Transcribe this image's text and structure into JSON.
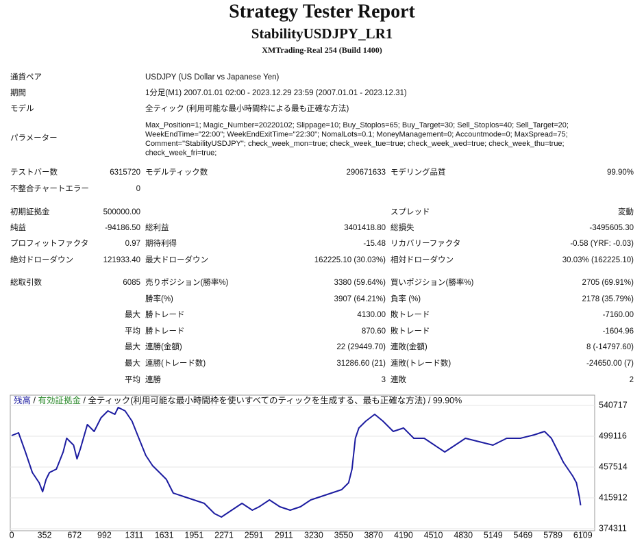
{
  "header": {
    "title": "Strategy Tester Report",
    "subtitle": "StabilityUSDJPY_LR1",
    "build": "XMTrading-Real 254 (Build 1400)"
  },
  "table": {
    "rows": [
      [
        "通貨ペア",
        "USDJPY (US Dollar vs Japanese Yen)"
      ],
      [
        "期間",
        "1分足(M1) 2007.01.01 02:00 - 2023.12.29 23:59 (2007.01.01 - 2023.12.31)"
      ],
      [
        "モデル",
        "全ティック (利用可能な最小時間枠による最も正確な方法)"
      ],
      [
        "パラメーター",
        [
          "Max_Position=1; Magic_Number=20220102; Slippage=10; Buy_Stoplos=65; Buy_Target=30; Sell_Stoplos=40; Sell_Target=20;",
          "WeekEndTime=\"22:00\"; WeekEndExitTime=\"22:30\"; NomalLots=0.1; MoneyManagement=0; Accountmode=0; MaxSpread=75;",
          "Comment=\"StabilityUSDJPY\"; check_week_mon=true; check_week_tue=true; check_week_wed=true; check_week_thu=true;",
          "check_week_fri=true;"
        ]
      ],
      [
        "テストバー数",
        "6315720",
        "モデルティック数",
        "290671633",
        "モデリング品質",
        "99.90%"
      ],
      [
        "不整合チャートエラー",
        "0"
      ],
      [
        "初期証拠金",
        "500000.00",
        null,
        null,
        "スプレッド",
        "変動"
      ],
      [
        "純益",
        "-94186.50",
        "総利益",
        "3401418.80",
        "総損失",
        "-3495605.30"
      ],
      [
        "プロフィットファクタ",
        "0.97",
        "期待利得",
        "-15.48",
        "リカバリーファクタ",
        "-0.58 (YRF: -0.03)"
      ],
      [
        "絶対ドローダウン",
        "121933.40",
        "最大ドローダウン",
        "162225.10 (30.03%)",
        "相対ドローダウン",
        "30.03% (162225.10)"
      ],
      [
        "総取引数",
        "6085",
        "売りポジション(勝率%)",
        "3380 (59.64%)",
        "買いポジション(勝率%)",
        "2705 (69.91%)"
      ],
      [
        null,
        null,
        "勝率(%)",
        "3907 (64.21%)",
        "負率 (%)",
        "2178 (35.79%)"
      ],
      [
        null,
        "最大",
        "勝トレード",
        "4130.00",
        "敗トレード",
        "-7160.00"
      ],
      [
        null,
        "平均",
        "勝トレード",
        "870.60",
        "敗トレード",
        "-1604.96"
      ],
      [
        null,
        "最大",
        "連勝(金額)",
        "22 (29449.70)",
        "連敗(金額)",
        "8 (-14797.60)"
      ],
      [
        null,
        "最大",
        "連勝(トレード数)",
        "31286.60 (21)",
        "連敗(トレード数)",
        "-24650.00 (7)"
      ],
      [
        null,
        "平均",
        "連勝",
        "3",
        "連敗",
        "2"
      ]
    ]
  },
  "chart_data": {
    "type": "line",
    "separator": "/",
    "equity_label": "有効証拠金",
    "equity_color": "#2e8b2e",
    "model_label": "全ティック(利用可能な最小時間枠を使いすべてのティックを生成する、最も正確な方法)",
    "quality_label": "99.90%",
    "x": [
      0,
      74,
      147,
      221,
      294,
      331,
      368,
      404,
      478,
      551,
      588,
      662,
      699,
      735,
      809,
      882,
      956,
      1029,
      1103,
      1140,
      1213,
      1287,
      1360,
      1434,
      1507,
      1581,
      1654,
      1728,
      1838,
      1949,
      2059,
      2169,
      2243,
      2353,
      2463,
      2574,
      2647,
      2757,
      2868,
      2978,
      3088,
      3199,
      3309,
      3419,
      3529,
      3603,
      3640,
      3676,
      3713,
      3787,
      3882,
      3971,
      4081,
      4191,
      4301,
      4412,
      4522,
      4632,
      4743,
      4853,
      5000,
      5147,
      5294,
      5441,
      5588,
      5699,
      5772,
      5846,
      5900,
      5950,
      6000,
      6040,
      6070,
      6085
    ],
    "series": [
      {
        "name": "残高",
        "color": "#1c1ca0",
        "values": [
          500000,
          503737,
          477851,
          450116,
          436248,
          424230,
          440871,
          450116,
          454738,
          477851,
          496341,
          487096,
          468606,
          482473,
          514831,
          505586,
          524076,
          533321,
          528698,
          537943,
          533321,
          519453,
          496341,
          473228,
          459361,
          450116,
          440871,
          422381,
          417758,
          413136,
          408513,
          394646,
          390023,
          399268,
          408513,
          399268,
          403891,
          413136,
          403891,
          399268,
          403891,
          413136,
          417758,
          422381,
          427003,
          436248,
          454738,
          496341,
          510208,
          519453,
          528698,
          519453,
          505586,
          510208,
          496341,
          496341,
          487096,
          477851,
          487096,
          496341,
          491718,
          487096,
          496341,
          496341,
          500963,
          505586,
          496341,
          477851,
          463983,
          454738,
          445493,
          436248,
          417758,
          405814
        ]
      }
    ],
    "xlim": [
      -15,
      6235
    ],
    "ylim": [
      371538,
      554585
    ],
    "xticks": [
      0,
      352,
      672,
      992,
      1311,
      1631,
      1951,
      2271,
      2591,
      2911,
      3230,
      3550,
      3870,
      4190,
      4510,
      4830,
      5149,
      5469,
      5789,
      6109
    ],
    "yticks": [
      374311,
      415912,
      457514,
      499116,
      540717
    ],
    "grid": true
  }
}
